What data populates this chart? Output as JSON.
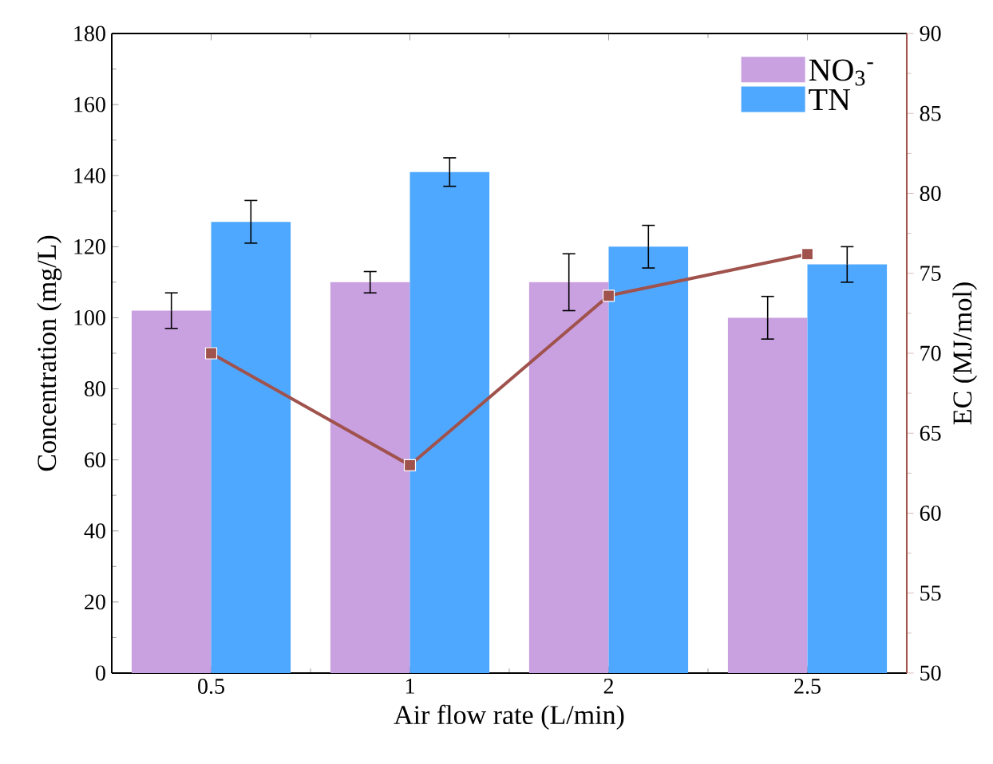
{
  "chart_data": {
    "type": "bar",
    "xlabel": "Air flow rate (L/min)",
    "ylabel": "Concentration (mg/L)",
    "y2label": "EC (MJ/mol)",
    "categories": [
      "0.5",
      "1",
      "2",
      "2.5"
    ],
    "ylim": [
      0,
      180
    ],
    "yticks": [
      0,
      20,
      40,
      60,
      80,
      100,
      120,
      140,
      160,
      180
    ],
    "y2lim": [
      50,
      90
    ],
    "y2ticks": [
      50,
      55,
      60,
      65,
      70,
      75,
      80,
      85,
      90
    ],
    "legend": "top right",
    "series": [
      {
        "name": "NO$_{3}$$^{-}$",
        "color": "#c9a0e0",
        "values": [
          102,
          110,
          110,
          100
        ],
        "errors": [
          5,
          3,
          8,
          6
        ]
      },
      {
        "name": "TN",
        "color": "#4fa8ff",
        "values": [
          127,
          141,
          120,
          115
        ],
        "errors": [
          6,
          4,
          6,
          5
        ]
      },
      {
        "type": "line",
        "axis": "y2",
        "color": "#a0524d",
        "marker": "square",
        "values": [
          70,
          63,
          73.6,
          76.2
        ]
      }
    ]
  }
}
